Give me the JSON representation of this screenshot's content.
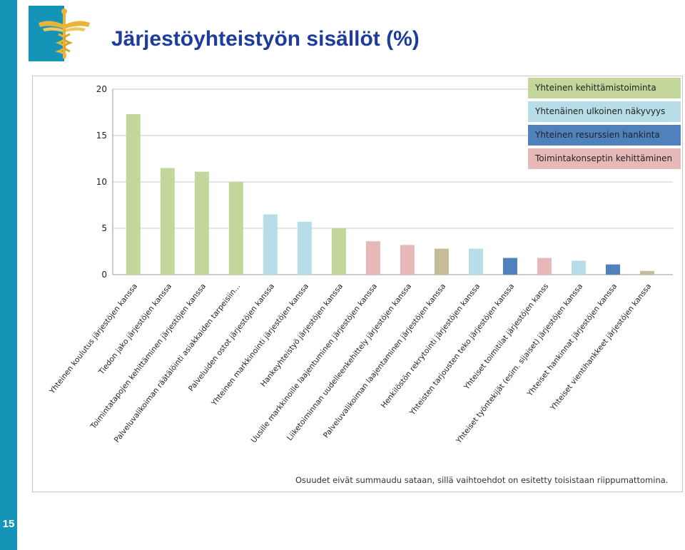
{
  "slide": {
    "title": "Järjestöyhteistyön sisällöt (%)",
    "page_number": "15",
    "accent_color": "#1495b8",
    "title_color": "#1d3c9b"
  },
  "chart_data": {
    "type": "bar",
    "title": "",
    "xlabel": "",
    "ylabel": "",
    "ylim": [
      0,
      20
    ],
    "yticks": [
      0,
      5,
      10,
      15,
      20
    ],
    "grid": true,
    "legend_position": "top-right",
    "legend": [
      {
        "label": "Yhteinen kehittämistoiminta",
        "color": "#c3d69b"
      },
      {
        "label": "Yhtenäinen ulkoinen näkyvyys",
        "color": "#b7dde8"
      },
      {
        "label": "Yhteinen resurssien hankinta",
        "color": "#4f81bd"
      },
      {
        "label": "Toimintakonseptin kehittäminen",
        "color": "#e6b9b8"
      }
    ],
    "categories": [
      "Yhteinen koulutus järjestöjen kanssa",
      "Tiedon jako järjestöjen kanssa",
      "Toimintatapojen kehittäminen järjestöjen kanssa",
      "Palveluvalikoiman räätälöinti asiakkaiden tarpeisiin...",
      "Palveluiden ostot järjestöjen kanssa",
      "Yhteinen markkinointi järjestöjen kanssa",
      "Hankeyhteistyö järjestöjen kanssa",
      "Uusille markkinoille laajentuminen järjestöjen kanssa",
      "Liiketoiminnan uudelleenkehittely järjestöjen kanssa",
      "Palveluvalikoiman laajentaminen järjestöjen kanssa",
      "Henkilöstön rekrytointi järjestöjen kanssa",
      "Yhteisten tarjousten teko järjestöjen kanssa",
      "Yhteiset toimitilat järjestöjen kanss",
      "Yhteiset työntekijät (esim. sijaiset) järjestöjen kanssa",
      "Yhteiset hankinnat järjestöjen kanssa",
      "Yhteiset vientihankkeet järjestöjen kanssa"
    ],
    "values": [
      17.3,
      11.5,
      11.1,
      10.0,
      6.5,
      5.7,
      5.0,
      3.6,
      3.2,
      2.8,
      2.8,
      1.8,
      1.8,
      1.5,
      1.1,
      0.4
    ],
    "bar_colors": [
      "#c3d69b",
      "#c3d69b",
      "#c3d69b",
      "#c3d69b",
      "#b7dde8",
      "#b7dde8",
      "#c3d69b",
      "#e6b9b8",
      "#e6b9b8",
      "#c4bd97",
      "#b7dde8",
      "#4f81bd",
      "#e6b9b8",
      "#b7dde8",
      "#4f81bd",
      "#c4bd97"
    ],
    "footnote": "Osuudet eivät summaudu sataan, sillä vaihtoehdot on esitetty toisistaan riippumattomina."
  }
}
